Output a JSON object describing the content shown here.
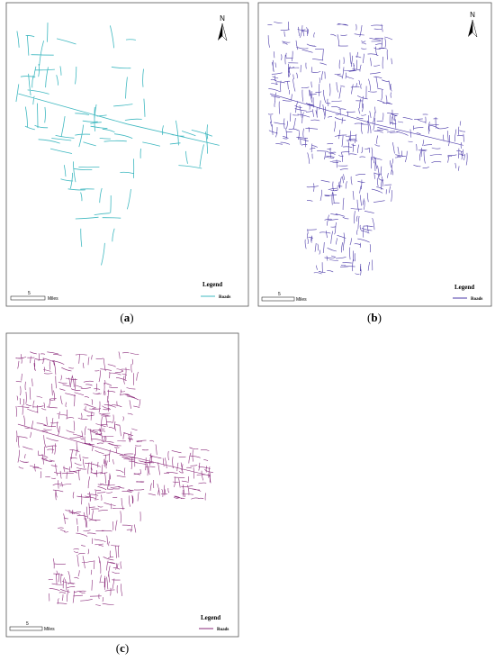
{
  "panels": [
    {
      "label": "(a)",
      "north": "N",
      "legend": {
        "title": "Legend",
        "item": "Roads"
      },
      "scale": {
        "value": 5,
        "unit": "Miles"
      }
    },
    {
      "label": "(b)",
      "north": "N",
      "legend": {
        "title": "Legend",
        "item": "Roads"
      },
      "scale": {
        "value": 5,
        "unit": "Miles"
      }
    },
    {
      "label": "(c)",
      "legend": {
        "title": "Legend",
        "item": "Roads"
      },
      "scale": {
        "value": 5,
        "unit": "Miles"
      }
    }
  ]
}
